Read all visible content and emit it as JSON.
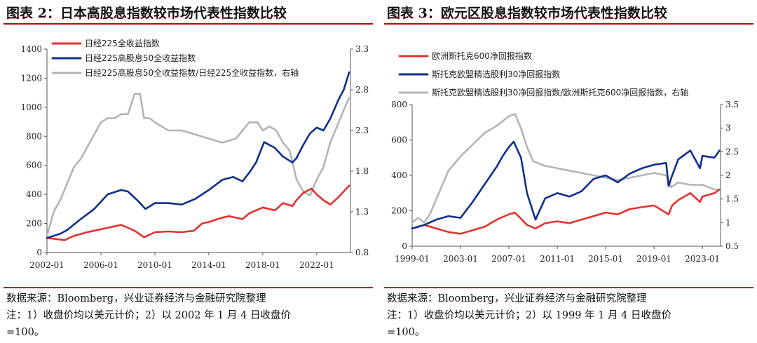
{
  "panels": [
    {
      "title": "图表 2：日本高股息指数较市场代表性指数比较",
      "source": "数据来源：Bloomberg，兴业证券经济与金融研究院整理",
      "note": "注：1）收盘价均以美元计价；2）以 2002 年 1 月 4 日收盘价",
      "note2": "=100。"
    },
    {
      "title": "图表 3：欧元区股息指数较市场代表性指数比较",
      "source": "数据来源：Bloomberg，兴业证券经济与金融研究院整理",
      "note": "注：1）收盘价均以美元计价；2）以 1999 年 1 月 4 日收盘价",
      "note2": "=100。"
    }
  ],
  "chart_data": [
    {
      "type": "line",
      "title": "",
      "xlabel": "",
      "ylabel": "",
      "x_range": [
        2002.0,
        2024.5
      ],
      "x_ticks": [
        2002,
        2006,
        2010,
        2014,
        2018,
        2022
      ],
      "x_tick_labels": [
        "2002-01",
        "2006-01",
        "2010-01",
        "2014-01",
        "2018-01",
        "2022-01"
      ],
      "ylim": [
        0,
        1400
      ],
      "y_ticks": [
        0,
        200,
        400,
        600,
        800,
        1000,
        1200,
        1400
      ],
      "y2lim": [
        0.8,
        3.3
      ],
      "y2_ticks": [
        0.8,
        1.3,
        1.8,
        2.3,
        2.8,
        3.3
      ],
      "y2_tick_labels": [
        "0.8",
        "1.3",
        "1.8",
        "2.3",
        "2.8",
        "3.3"
      ],
      "legend_position": "top-left",
      "series": [
        {
          "name": "日经225全收益指数",
          "color": "#e53030",
          "axis": "left",
          "x": [
            2002.0,
            2002.5,
            2003.3,
            2004.0,
            2005.0,
            2006.0,
            2007.0,
            2007.5,
            2008.5,
            2009.2,
            2010.0,
            2011.0,
            2012.0,
            2012.9,
            2013.5,
            2014.0,
            2015.0,
            2015.5,
            2016.5,
            2017.0,
            2018.0,
            2018.9,
            2019.5,
            2020.2,
            2020.5,
            2021.0,
            2021.6,
            2022.0,
            2022.5,
            2023.0,
            2023.6,
            2024.0,
            2024.4
          ],
          "values": [
            100,
            95,
            85,
            115,
            140,
            160,
            180,
            190,
            150,
            105,
            140,
            145,
            140,
            150,
            200,
            210,
            240,
            250,
            230,
            270,
            310,
            290,
            340,
            320,
            360,
            410,
            440,
            400,
            360,
            330,
            380,
            420,
            460
          ]
        },
        {
          "name": "日经225高股息50全收益指数",
          "color": "#0e2f8c",
          "axis": "left",
          "x": [
            2002.0,
            2003.0,
            2003.5,
            2004.5,
            2005.5,
            2006.5,
            2007.5,
            2008.0,
            2008.7,
            2009.3,
            2010.0,
            2011.0,
            2012.0,
            2013.0,
            2014.0,
            2015.0,
            2015.8,
            2016.5,
            2017.0,
            2017.5,
            2018.1,
            2018.9,
            2019.5,
            2020.2,
            2020.5,
            2021.0,
            2021.5,
            2022.0,
            2022.5,
            2023.0,
            2023.6,
            2024.0,
            2024.4
          ],
          "values": [
            100,
            130,
            155,
            230,
            300,
            400,
            430,
            420,
            360,
            300,
            340,
            340,
            330,
            370,
            430,
            500,
            520,
            490,
            550,
            620,
            760,
            720,
            660,
            620,
            650,
            740,
            820,
            860,
            840,
            920,
            1050,
            1120,
            1240
          ]
        },
        {
          "name": "日经225高股息50全收益指数/日经225全收益指数，右轴",
          "color": "#b4b4b4",
          "axis": "right",
          "x": [
            2002.0,
            2002.5,
            2003.0,
            2003.5,
            2004.0,
            2004.5,
            2005.0,
            2005.5,
            2006.0,
            2006.5,
            2007.0,
            2007.5,
            2008.0,
            2008.5,
            2008.9,
            2009.2,
            2009.6,
            2010.0,
            2011.0,
            2012.0,
            2013.0,
            2014.0,
            2015.0,
            2016.0,
            2016.5,
            2017.0,
            2017.6,
            2018.0,
            2018.5,
            2019.0,
            2019.5,
            2020.0,
            2020.5,
            2021.0,
            2021.5,
            2022.0,
            2022.5,
            2023.0,
            2023.5,
            2024.0,
            2024.4
          ],
          "values": [
            1.0,
            1.3,
            1.45,
            1.65,
            1.85,
            1.95,
            2.1,
            2.25,
            2.4,
            2.45,
            2.45,
            2.5,
            2.5,
            2.75,
            2.75,
            2.45,
            2.45,
            2.4,
            2.3,
            2.3,
            2.25,
            2.2,
            2.15,
            2.2,
            2.3,
            2.4,
            2.4,
            2.3,
            2.35,
            2.3,
            2.15,
            2.05,
            1.7,
            1.55,
            1.5,
            1.7,
            1.85,
            2.15,
            2.35,
            2.55,
            2.7
          ]
        }
      ]
    },
    {
      "type": "line",
      "title": "",
      "xlabel": "",
      "ylabel": "",
      "x_range": [
        1999.0,
        2024.5
      ],
      "x_ticks": [
        1999,
        2003,
        2007,
        2011,
        2015,
        2019,
        2023
      ],
      "x_tick_labels": [
        "1999-01",
        "2003-01",
        "2007-01",
        "2011-01",
        "2015-01",
        "2019-01",
        "2023-01"
      ],
      "ylim": [
        0,
        800
      ],
      "y_ticks": [
        0,
        200,
        400,
        600,
        800
      ],
      "y2lim": [
        0.5,
        3.5
      ],
      "y2_ticks": [
        0.5,
        1,
        1.5,
        2,
        2.5,
        3,
        3.5
      ],
      "y2_tick_labels": [
        "0.5",
        "1",
        "1.5",
        "2",
        "2.5",
        "3",
        "3.5"
      ],
      "legend_position": "top-left",
      "series": [
        {
          "name": "欧洲斯托克600净回报指数",
          "color": "#e53030",
          "axis": "left",
          "x": [
            1999.0,
            2000.0,
            2001.0,
            2002.0,
            2003.0,
            2004.0,
            2005.0,
            2006.0,
            2007.0,
            2007.5,
            2008.5,
            2009.2,
            2010.0,
            2011.0,
            2012.0,
            2013.0,
            2014.0,
            2015.0,
            2016.0,
            2017.0,
            2018.0,
            2019.0,
            2020.2,
            2020.5,
            2021.0,
            2022.0,
            2022.8,
            2023.0,
            2024.0,
            2024.4
          ],
          "values": [
            100,
            120,
            100,
            80,
            70,
            90,
            110,
            150,
            180,
            190,
            120,
            100,
            130,
            140,
            130,
            150,
            170,
            190,
            180,
            210,
            220,
            230,
            180,
            230,
            260,
            300,
            250,
            280,
            300,
            320
          ]
        },
        {
          "name": "斯托克欧盟精选股利30净回报指数",
          "color": "#0e2f8c",
          "axis": "left",
          "x": [
            1999.0,
            2000.0,
            2001.0,
            2002.0,
            2003.0,
            2004.0,
            2005.0,
            2006.0,
            2006.5,
            2007.0,
            2007.4,
            2008.0,
            2008.5,
            2009.2,
            2010.0,
            2011.0,
            2012.0,
            2013.0,
            2014.0,
            2015.0,
            2016.0,
            2017.0,
            2018.0,
            2019.0,
            2020.0,
            2020.2,
            2020.5,
            2021.0,
            2022.0,
            2022.8,
            2023.0,
            2024.0,
            2024.4
          ],
          "values": [
            100,
            120,
            150,
            170,
            160,
            250,
            350,
            450,
            510,
            560,
            590,
            500,
            300,
            150,
            270,
            300,
            280,
            310,
            380,
            400,
            360,
            410,
            440,
            460,
            470,
            340,
            400,
            490,
            540,
            440,
            510,
            500,
            540
          ]
        },
        {
          "name": "斯托克欧盟精选股利30净回报指数/欧洲斯托克600净回报指数，右轴",
          "color": "#b4b4b4",
          "axis": "right",
          "x": [
            1999.0,
            1999.5,
            2000.0,
            2000.5,
            2001.0,
            2001.5,
            2002.0,
            2003.0,
            2004.0,
            2005.0,
            2006.0,
            2006.5,
            2007.0,
            2007.5,
            2008.0,
            2008.5,
            2009.0,
            2010.0,
            2011.0,
            2012.0,
            2013.0,
            2014.0,
            2015.0,
            2016.0,
            2017.0,
            2018.0,
            2019.0,
            2020.0,
            2020.4,
            2021.0,
            2022.0,
            2023.0,
            2024.0,
            2024.4
          ],
          "values": [
            1.0,
            1.1,
            1.0,
            1.2,
            1.5,
            1.8,
            2.1,
            2.4,
            2.65,
            2.9,
            3.05,
            3.15,
            3.25,
            3.3,
            3.0,
            2.6,
            2.3,
            2.2,
            2.15,
            2.1,
            2.05,
            2.0,
            1.95,
            1.9,
            1.95,
            2.0,
            2.05,
            2.0,
            1.75,
            1.85,
            1.8,
            1.8,
            1.7,
            1.7
          ]
        }
      ]
    }
  ]
}
